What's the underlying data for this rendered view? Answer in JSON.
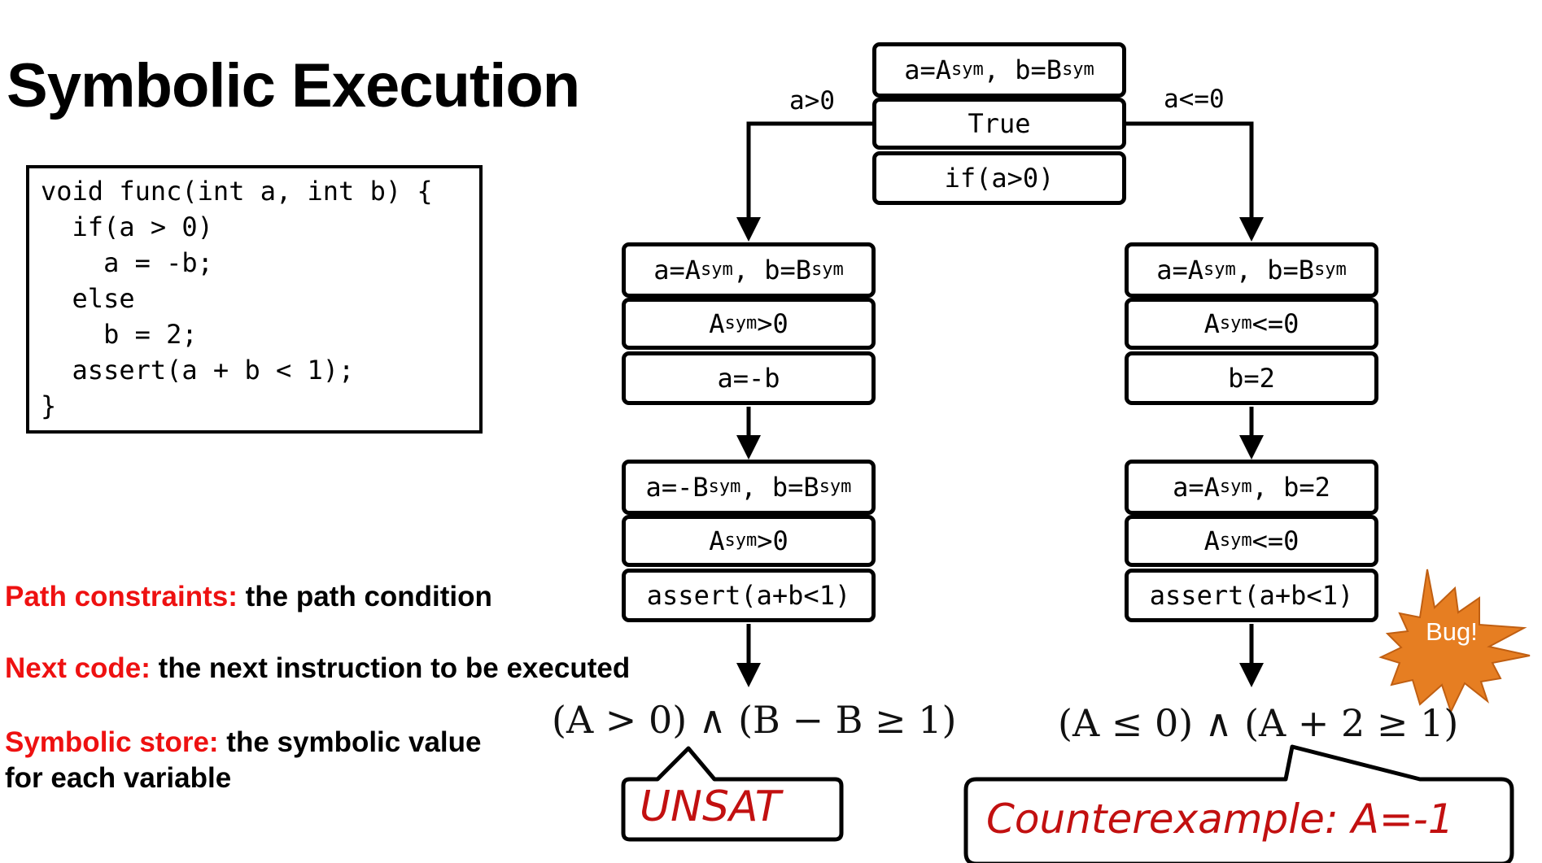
{
  "title": "Symbolic Execution",
  "code_lines": [
    "void func(int a, int b) {",
    "  if(a > 0)",
    "    a = -b;",
    "  else",
    "    b = 2;",
    "  assert(a + b < 1);",
    "}"
  ],
  "legend": [
    {
      "key": "Path constraints:",
      "text": " the path condition"
    },
    {
      "key": "Next code:",
      "text": " the next instruction to be executed"
    },
    {
      "key": "Symbolic store:",
      "text": "  the symbolic value",
      "text2": "for each variable"
    }
  ],
  "edge_labels": {
    "left": "a>0",
    "right": "a<=0"
  },
  "nodes": {
    "root": {
      "store_a": "a=A",
      "store_sep": ", b=B",
      "store_sub": "sym",
      "constraint": "True",
      "code": "if(a>0)"
    },
    "left1": {
      "store_a": "a=A",
      "store_sep": ", b=B",
      "store_sub": "sym",
      "constraint_var": "A",
      "constraint_sub": "sym",
      "constraint_rest": ">0",
      "code": "a=-b"
    },
    "right1": {
      "store_a": "a=A",
      "store_sep": ", b=B",
      "store_sub": "sym",
      "constraint_var": "A",
      "constraint_sub": "sym",
      "constraint_rest": "<=0",
      "code": "b=2"
    },
    "left2": {
      "store_a": "a=-B",
      "store_sep": ", b=B",
      "store_sub": "sym",
      "constraint_var": "A",
      "constraint_sub": "sym",
      "constraint_rest": ">0",
      "code": "assert(a+b<1)"
    },
    "right2": {
      "store_a": "a=A",
      "store_sub": "sym",
      "store_rest": ", b=2",
      "constraint_var": "A",
      "constraint_sub": "sym",
      "constraint_rest": "<=0",
      "code": "assert(a+b<1)"
    }
  },
  "formulas": {
    "left": "(A > 0) ∧ (B − B ≥ 1)",
    "right": "(A ≤ 0) ∧ (A + 2 ≥ 1)"
  },
  "callouts": {
    "left": "UNSAT",
    "right": "Counterexample: A=-1"
  },
  "bug_label": "Bug!",
  "colors": {
    "legend_key": "#ee1111",
    "callout_text": "#c21010",
    "bug_fill": "#e67e22"
  }
}
